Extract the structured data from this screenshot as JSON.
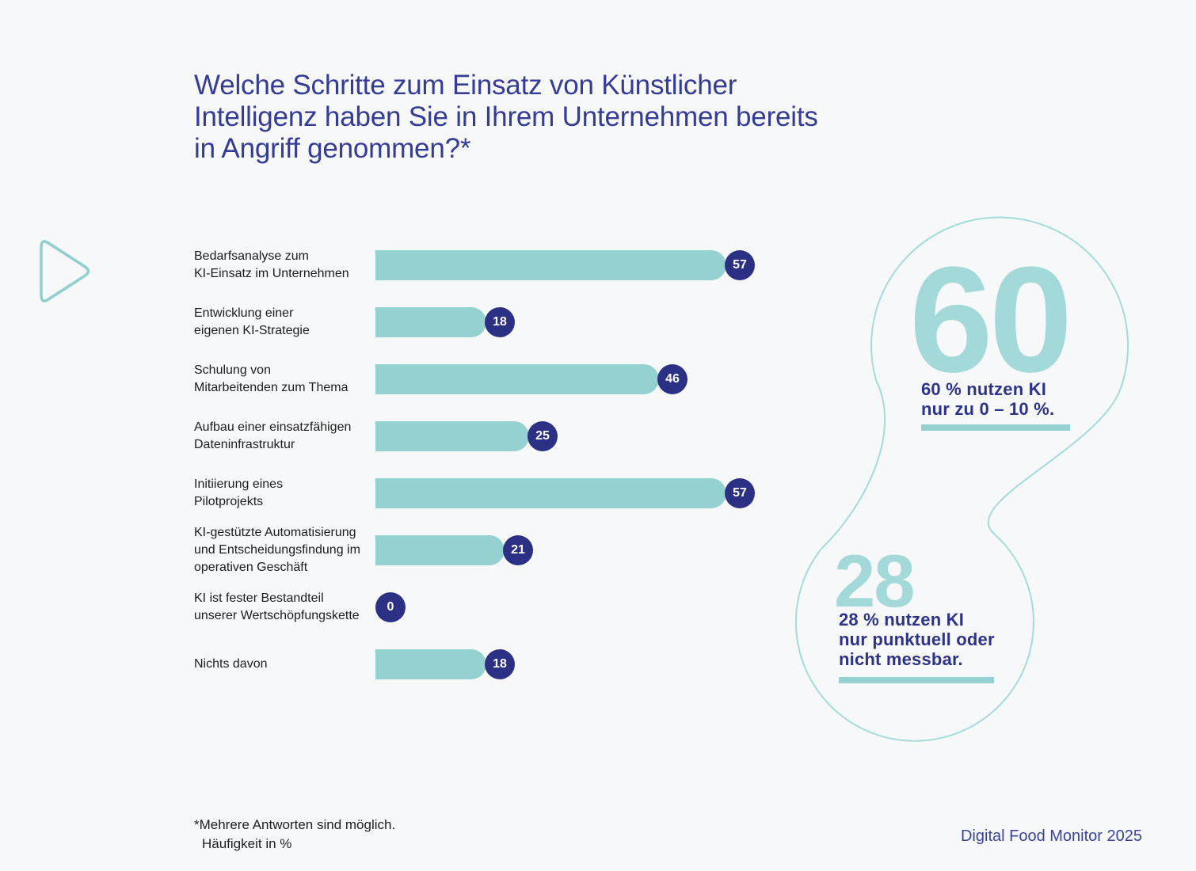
{
  "title_lines": [
    "Welche Schritte zum Einsatz von Künstlicher",
    "Intelligenz haben Sie in Ihrem Unternehmen bereits",
    "in Angriff genommen?*"
  ],
  "chart_data": {
    "type": "bar",
    "orientation": "horizontal",
    "title": "Welche Schritte zum Einsatz von Künstlicher Intelligenz haben Sie in Ihrem Unternehmen bereits in Angriff genommen?*",
    "xlabel": "Häufigkeit in %",
    "xlim": [
      0,
      60
    ],
    "grid": false,
    "value_labels": "badge at bar end",
    "categories": [
      "Bedarfsanalyse zum\nKI-Einsatz im Unternehmen",
      "Entwicklung einer\neigenen KI-Strategie",
      "Schulung von\nMitarbeitenden zum Thema",
      "Aufbau einer einsatzfähigen\nDateninfrastruktur",
      "Initiierung eines\nPilotprojekts",
      "KI-gestützte Automatisierung\nund Entscheidungsfindung im\noperativen Geschäft",
      "KI ist fester Bestandteil\nunserer Wertschöpfungskette",
      "Nichts davon"
    ],
    "values": [
      57,
      18,
      46,
      25,
      57,
      21,
      0,
      18
    ]
  },
  "callouts": [
    {
      "number": "60",
      "text": "60 % nutzen KI\nnur zu 0 – 10 %."
    },
    {
      "number": "28",
      "text": "28 % nutzen KI\nnur punktuell oder\nnicht messbar."
    }
  ],
  "footnote": {
    "line1": "*Mehrere Antworten sind möglich.",
    "line2": "Häufigkeit in %"
  },
  "source": "Digital Food Monitor 2025",
  "colors": {
    "background": "#f7f8f9",
    "bar": "#95d1d1",
    "badge": "#2b3084",
    "title": "#353c96",
    "callout_number": "#a3d9d9",
    "callout_text": "#2d3389",
    "outline": "#a5dbda",
    "triangle": "#8fd0cf",
    "label": "#1d1d1e",
    "source": "#3b4499"
  }
}
